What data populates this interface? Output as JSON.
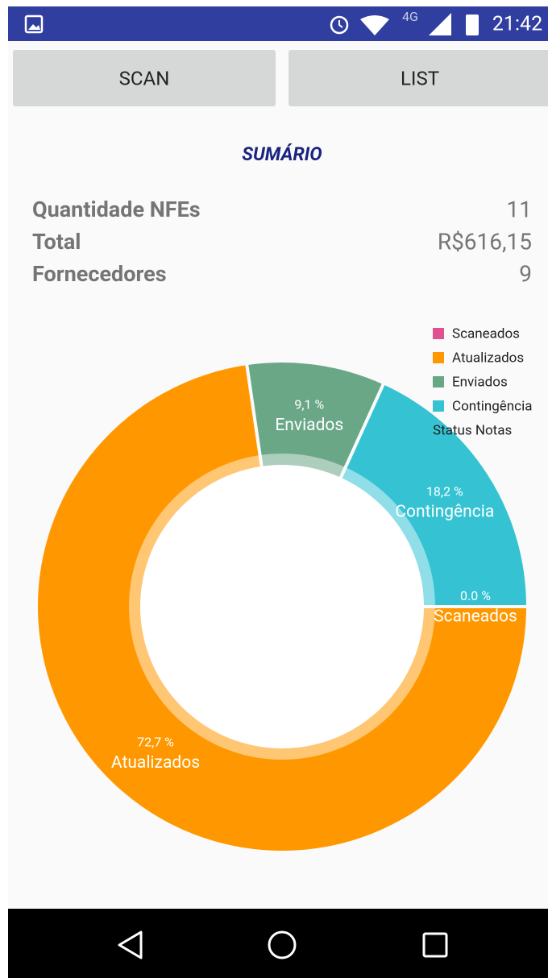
{
  "status_bar": {
    "network": "4G",
    "time": "21:42"
  },
  "buttons": [
    "SCAN",
    "LIST"
  ],
  "summary": {
    "title": "SUMÁRIO",
    "rows": [
      {
        "label": "Quantidade NFEs",
        "value": 11
      },
      {
        "label": "Total",
        "value": "R$616,15"
      },
      {
        "label": "Fornecedores",
        "value": 9
      }
    ]
  },
  "chart_data": {
    "type": "pie",
    "donut": true,
    "categories": [
      "Scaneados",
      "Atualizados",
      "Enviados",
      "Contingência"
    ],
    "values": [
      0,
      72.7,
      9.1,
      18.2
    ],
    "value_labels": [
      "0.0 %",
      "72,7 %",
      "9,1 %",
      "18,2 %"
    ],
    "colors": [
      "#e0518f",
      "#ff9800",
      "#6aa787",
      "#35c3d3"
    ],
    "legend": "top-right",
    "description": "Status Notas"
  }
}
